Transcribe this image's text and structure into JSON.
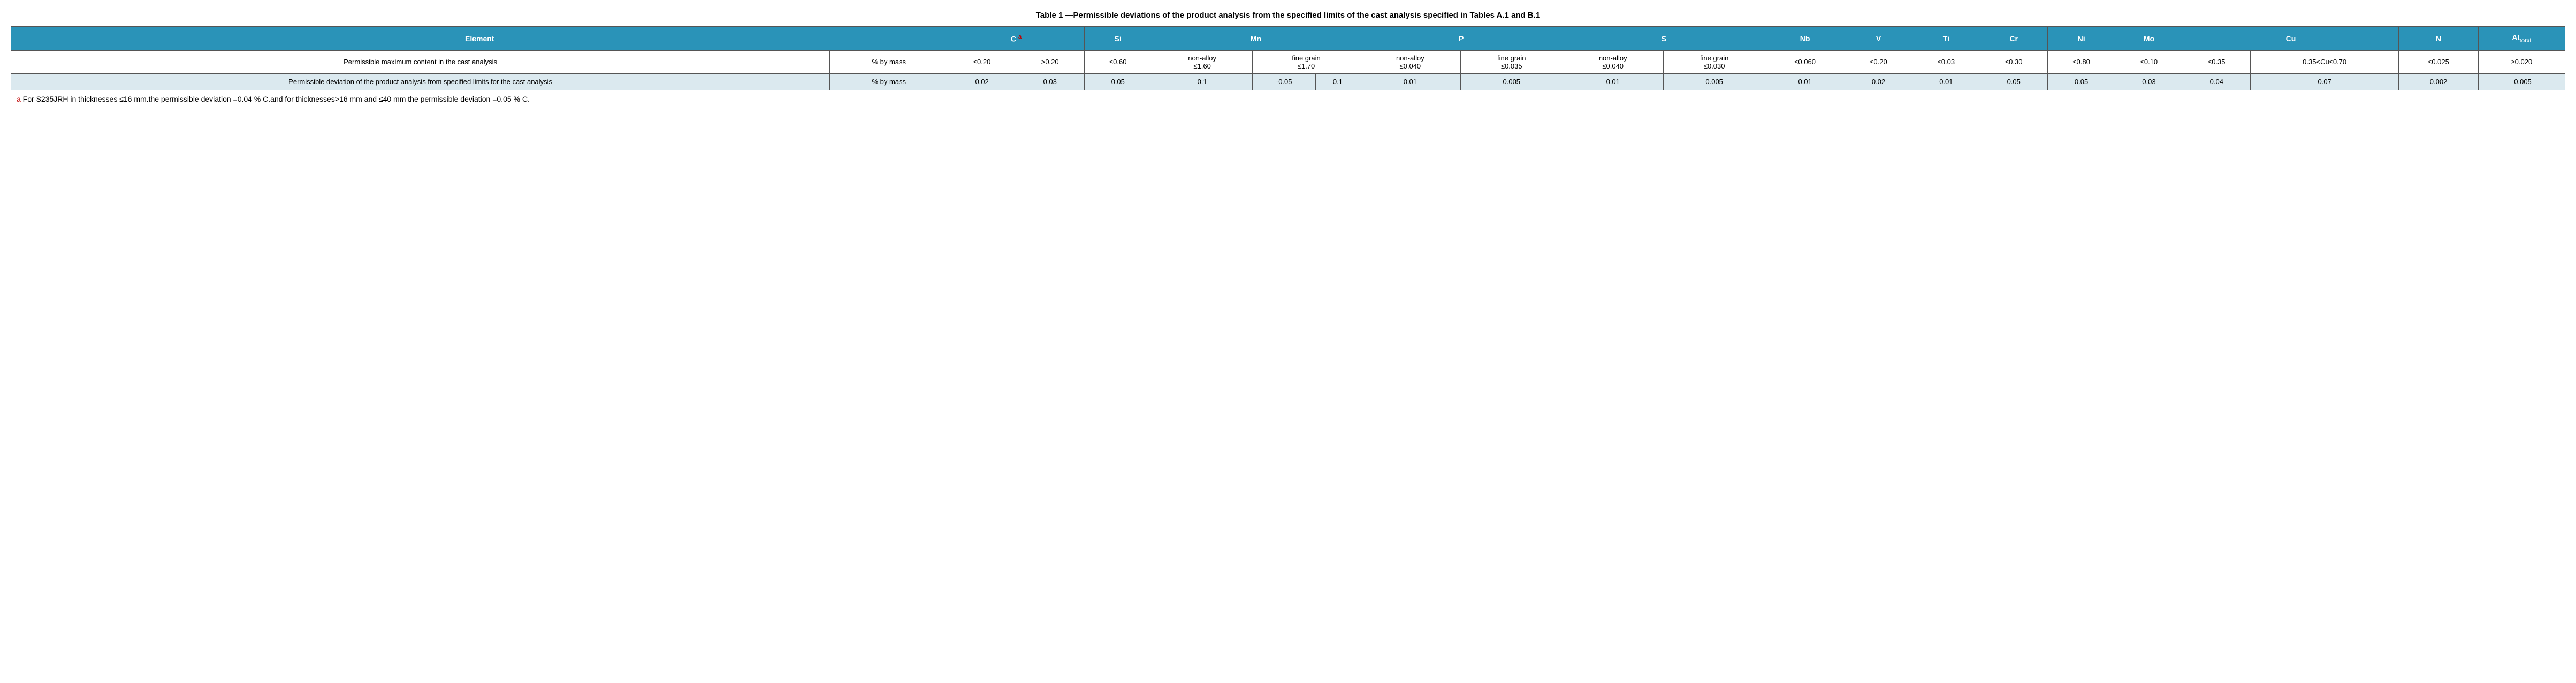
{
  "title": "Table 1 —Permissible deviations of the product analysis from the specified limits of the cast analysis specified in Tables A.1 and B.1",
  "headers": {
    "element": "Element",
    "c": "C",
    "c_note": "a",
    "si": "Si",
    "mn": "Mn",
    "p": "P",
    "s": "S",
    "nb": "Nb",
    "v": "V",
    "ti": "Ti",
    "cr": "Cr",
    "ni": "Ni",
    "mo": "Mo",
    "cu": "Cu",
    "n": "N",
    "al": "Al",
    "al_sub": "total"
  },
  "row1": {
    "label": "Permissible maximum content in the cast analysis",
    "unit": "% by mass",
    "c1": "≤0.20",
    "c2": ">0.20",
    "si": "≤0.60",
    "mn1_top": "non-alloy",
    "mn1_bot": "≤1.60",
    "mn2_top": "fine grain",
    "mn2_bot": "≤1.70",
    "p1_top": "non-alloy",
    "p1_bot": "≤0.040",
    "p2_top": "fine grain",
    "p2_bot": "≤0.035",
    "s1_top": "non-alloy",
    "s1_bot": "≤0.040",
    "s2_top": "fine grain",
    "s2_bot": "≤0.030",
    "nb": "≤0.060",
    "v": "≤0.20",
    "ti": "≤0.03",
    "cr": "≤0.30",
    "ni": "≤0.80",
    "mo": "≤0.10",
    "cu1": "≤0.35",
    "cu2": "0.35<Cu≤0.70",
    "n": "≤0.025",
    "al": "≥0.020"
  },
  "row2": {
    "label": "Permissible deviation of the product analysis from specified limits for the cast analysis",
    "unit": "% by mass",
    "c1": "0.02",
    "c2": "0.03",
    "si": "0.05",
    "mn1": "0.1",
    "mn2a": "-0.05",
    "mn2b": "0.1",
    "p1": "0.01",
    "p2": "0.005",
    "s1": "0.01",
    "s2": "0.005",
    "nb": "0.01",
    "v": "0.02",
    "ti": "0.01",
    "cr": "0.05",
    "ni": "0.05",
    "mo": "0.03",
    "cu1": "0.04",
    "cu2": "0.07",
    "n": "0.002",
    "al": "-0.005"
  },
  "footnote": {
    "marker": "a",
    "text": " For S235JRH in thicknesses ≤16 mm.the permissible deviation =0.04 % C.and for thicknesses>16 mm and ≤40 mm the permissible deviation =0.05 % C."
  },
  "colors": {
    "header_bg": "#2a93b8",
    "header_fg": "#ffffff",
    "row_alt_bg": "#dbe9ef",
    "border": "#555555",
    "note_color": "#c00000"
  }
}
